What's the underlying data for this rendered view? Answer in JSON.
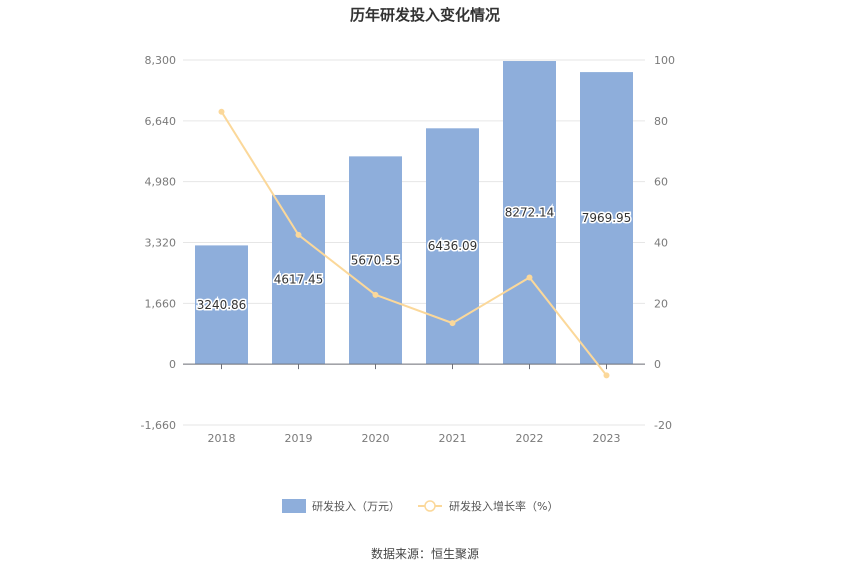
{
  "chart_data": {
    "type": "bar",
    "title": "历年研发投入变化情况",
    "categories": [
      "2018",
      "2019",
      "2020",
      "2021",
      "2022",
      "2023"
    ],
    "series": [
      {
        "name": "研发投入（万元）",
        "type": "bar",
        "axis": "left",
        "color": "#8eaedb",
        "values": [
          3240.86,
          4617.45,
          5670.55,
          6436.09,
          8272.14,
          7969.95
        ],
        "labels": [
          "3240.86",
          "4617.45",
          "5670.55",
          "6436.09",
          "8272.14",
          "7969.95"
        ]
      },
      {
        "name": "研发投入增长率（%）",
        "type": "line",
        "axis": "right",
        "color": "#fbd89a",
        "values": [
          83.0,
          42.5,
          22.8,
          13.5,
          28.5,
          -3.7
        ]
      }
    ],
    "y_left": {
      "ylim": [
        -1660,
        8300
      ],
      "ticks": [
        "8,300",
        "6,640",
        "4,980",
        "3,320",
        "1,660",
        "0",
        "-1,660"
      ]
    },
    "y_right": {
      "ylim": [
        -20,
        100
      ],
      "ticks": [
        "100",
        "80",
        "60",
        "40",
        "20",
        "0",
        "-20"
      ]
    },
    "grid": true,
    "legend_position": "bottom"
  },
  "source_text": "数据来源：恒生聚源"
}
